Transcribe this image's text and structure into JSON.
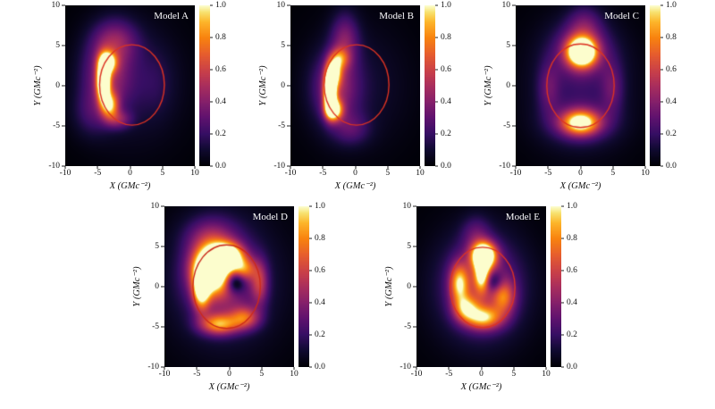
{
  "figure": {
    "background": "#ffffff",
    "label_color": "#ffffff",
    "tick_color": "#222222",
    "colormap_stops": [
      [
        0.0,
        [
          0,
          0,
          6
        ]
      ],
      [
        0.1,
        [
          16,
          10,
          48
        ]
      ],
      [
        0.2,
        [
          55,
          14,
          100
        ]
      ],
      [
        0.3,
        [
          95,
          18,
          110
        ]
      ],
      [
        0.4,
        [
          133,
          32,
          106
        ]
      ],
      [
        0.5,
        [
          170,
          46,
          93
        ]
      ],
      [
        0.6,
        [
          204,
          66,
          71
        ]
      ],
      [
        0.7,
        [
          231,
          94,
          45
        ]
      ],
      [
        0.8,
        [
          248,
          131,
          15
        ]
      ],
      [
        0.9,
        [
          253,
          182,
          43
        ]
      ],
      [
        0.96,
        [
          247,
          226,
          112
        ]
      ],
      [
        1.0,
        [
          252,
          253,
          205
        ]
      ]
    ]
  },
  "chart_data": [
    {
      "type": "heatmap",
      "title": "Model A",
      "xlabel": "X (GMc⁻²)",
      "ylabel": "Y (GMc⁻²)",
      "xlim": [
        -10,
        10
      ],
      "ylim": [
        -10,
        10
      ],
      "xticks": [
        -10,
        -5,
        0,
        5,
        10
      ],
      "yticks": [
        10,
        5,
        0,
        -5,
        -10
      ],
      "colorbar": {
        "min": 0,
        "max": 1,
        "ticks": [
          "1.0",
          "0.8",
          "0.6",
          "0.4",
          "0.2",
          "0.0"
        ]
      },
      "circle": {
        "cx": 0.3,
        "cy": 0.1,
        "r": 5.0,
        "color": "#dd3322"
      },
      "blobs": [
        {
          "x": -4.1,
          "y": 0.6,
          "sx": 0.65,
          "sy": 1.7,
          "a": 1.5
        },
        {
          "x": -3.4,
          "y": 2.9,
          "sx": 0.9,
          "sy": 0.9,
          "a": 0.85
        },
        {
          "x": -3.1,
          "y": -2.4,
          "sx": 0.9,
          "sy": 1.1,
          "a": 0.7
        },
        {
          "x": -1.8,
          "y": -4.2,
          "sx": 1.4,
          "sy": 0.8,
          "a": 0.3
        },
        {
          "x": -3.6,
          "y": 1.2,
          "sx": 2.6,
          "sy": 3.2,
          "a": 0.38
        },
        {
          "x": -2.2,
          "y": 5.6,
          "sx": 2.4,
          "sy": 1.9,
          "a": 0.3
        },
        {
          "x": -6.0,
          "y": -3.5,
          "sx": 2.0,
          "sy": 2.0,
          "a": 0.15
        },
        {
          "x": 0.5,
          "y": 0.3,
          "sx": 5.5,
          "sy": 5.5,
          "a": 0.12
        },
        {
          "x": 4.0,
          "y": 0.5,
          "sx": 2.0,
          "sy": 3.0,
          "a": 0.08
        }
      ]
    },
    {
      "type": "heatmap",
      "title": "Model B",
      "xlabel": "X (GMc⁻²)",
      "ylabel": "Y (GMc⁻²)",
      "xlim": [
        -10,
        10
      ],
      "ylim": [
        -10,
        10
      ],
      "xticks": [
        -10,
        -5,
        0,
        5,
        10
      ],
      "yticks": [
        10,
        5,
        0,
        -5,
        -10
      ],
      "colorbar": {
        "min": 0,
        "max": 1,
        "ticks": [
          "1.0",
          "0.8",
          "0.6",
          "0.4",
          "0.2",
          "0.0"
        ]
      },
      "circle": {
        "cx": 0.2,
        "cy": 0.1,
        "r": 5.0,
        "color": "#dd3322"
      },
      "blobs": [
        {
          "x": -3.9,
          "y": -0.8,
          "sx": 0.6,
          "sy": 1.6,
          "a": 1.5
        },
        {
          "x": -3.3,
          "y": -3.0,
          "sx": 0.9,
          "sy": 0.9,
          "a": 1.0
        },
        {
          "x": -3.3,
          "y": 1.6,
          "sx": 0.8,
          "sy": 1.2,
          "a": 0.8
        },
        {
          "x": -2.4,
          "y": 3.4,
          "sx": 1.0,
          "sy": 0.9,
          "a": 0.45
        },
        {
          "x": -3.1,
          "y": -0.3,
          "sx": 2.4,
          "sy": 3.0,
          "a": 0.38
        },
        {
          "x": -1.6,
          "y": 5.8,
          "sx": 1.5,
          "sy": 2.3,
          "a": 0.32
        },
        {
          "x": -0.6,
          "y": -5.4,
          "sx": 2.0,
          "sy": 1.4,
          "a": 0.2
        },
        {
          "x": 0.3,
          "y": 0.0,
          "sx": 5.5,
          "sy": 5.5,
          "a": 0.11
        }
      ]
    },
    {
      "type": "heatmap",
      "title": "Model C",
      "xlabel": "X (GMc⁻²)",
      "ylabel": "Y (GMc⁻²)",
      "xlim": [
        -10,
        10
      ],
      "ylim": [
        -10,
        10
      ],
      "xticks": [
        -10,
        -5,
        0,
        5,
        10
      ],
      "yticks": [
        10,
        5,
        0,
        -5,
        -10
      ],
      "colorbar": {
        "min": 0,
        "max": 1,
        "ticks": [
          "1.0",
          "0.8",
          "0.6",
          "0.4",
          "0.2",
          "0.0"
        ]
      },
      "circle": {
        "cx": 0.0,
        "cy": 0.0,
        "r": 5.2,
        "color": "#dd3322"
      },
      "blobs": [
        {
          "x": 0.2,
          "y": 4.2,
          "sx": 1.5,
          "sy": 1.2,
          "a": 1.35
        },
        {
          "x": 0.0,
          "y": -4.6,
          "sx": 1.9,
          "sy": 1.0,
          "a": 0.85
        },
        {
          "x": 0.2,
          "y": 4.4,
          "sx": 3.0,
          "sy": 2.3,
          "a": 0.35
        },
        {
          "x": 0.0,
          "y": -4.6,
          "sx": 3.4,
          "sy": 1.7,
          "a": 0.3
        },
        {
          "x": -4.9,
          "y": -0.3,
          "sx": 1.2,
          "sy": 2.2,
          "a": 0.22
        },
        {
          "x": 4.9,
          "y": -0.3,
          "sx": 1.2,
          "sy": 2.2,
          "a": 0.22
        },
        {
          "x": 0.0,
          "y": 0.0,
          "sx": 5.8,
          "sy": 5.5,
          "a": 0.16
        },
        {
          "x": 0.6,
          "y": 7.6,
          "sx": 1.8,
          "sy": 1.7,
          "a": 0.22
        }
      ]
    },
    {
      "type": "heatmap",
      "title": "Model D",
      "xlabel": "X (GMc⁻²)",
      "ylabel": "Y (GMc⁻²)",
      "xlim": [
        -10,
        10
      ],
      "ylim": [
        -10,
        10
      ],
      "xticks": [
        -10,
        -5,
        0,
        5,
        10
      ],
      "yticks": [
        10,
        5,
        0,
        -5,
        -10
      ],
      "colorbar": {
        "min": 0,
        "max": 1,
        "ticks": [
          "1.0",
          "0.8",
          "0.6",
          "0.4",
          "0.2",
          "0.0"
        ]
      },
      "circle": {
        "cx": -0.4,
        "cy": 0.0,
        "r": 5.2,
        "color": "#cc2a1a"
      },
      "blobs": [
        {
          "x": -2.7,
          "y": 2.3,
          "sx": 1.9,
          "sy": 1.8,
          "a": 1.3
        },
        {
          "x": -0.3,
          "y": 3.9,
          "sx": 1.6,
          "sy": 1.0,
          "a": 1.0
        },
        {
          "x": -4.3,
          "y": -0.3,
          "sx": 0.9,
          "sy": 1.8,
          "a": 0.85
        },
        {
          "x": -1.6,
          "y": -4.7,
          "sx": 2.0,
          "sy": 0.9,
          "a": 0.7
        },
        {
          "x": 2.4,
          "y": -3.9,
          "sx": 1.6,
          "sy": 1.0,
          "a": 0.55
        },
        {
          "x": 4.7,
          "y": 0.4,
          "sx": 0.9,
          "sy": 1.9,
          "a": 0.4
        },
        {
          "x": -1.6,
          "y": 1.4,
          "sx": 3.4,
          "sy": 3.4,
          "a": 0.42
        },
        {
          "x": -0.5,
          "y": 0.5,
          "sx": 6.3,
          "sy": 6.0,
          "a": 0.18
        },
        {
          "x": -3.0,
          "y": 6.2,
          "sx": 2.6,
          "sy": 1.7,
          "a": 0.25
        },
        {
          "x": 0.9,
          "y": 0.7,
          "sx": 1.1,
          "sy": 1.0,
          "a": -0.6
        },
        {
          "x": 2.2,
          "y": 2.2,
          "sx": 1.3,
          "sy": 1.0,
          "a": 0.5
        }
      ]
    },
    {
      "type": "heatmap",
      "title": "Model E",
      "xlabel": "X (GMc⁻²)",
      "ylabel": "Y (GMc⁻²)",
      "xlim": [
        -10,
        10
      ],
      "ylim": [
        -10,
        10
      ],
      "xticks": [
        -10,
        -5,
        0,
        5,
        10
      ],
      "yticks": [
        10,
        5,
        0,
        -5,
        -10
      ],
      "colorbar": {
        "min": 0,
        "max": 1,
        "ticks": [
          "1.0",
          "0.8",
          "0.6",
          "0.4",
          "0.2",
          "0.0"
        ]
      },
      "circle": {
        "cx": 0.2,
        "cy": -0.1,
        "r": 5.0,
        "color": "#dd3322"
      },
      "blobs": [
        {
          "x": 0.4,
          "y": 3.9,
          "sx": 1.3,
          "sy": 1.1,
          "a": 1.35
        },
        {
          "x": 0.1,
          "y": 1.6,
          "sx": 0.8,
          "sy": 1.5,
          "a": 0.8
        },
        {
          "x": -3.4,
          "y": 0.4,
          "sx": 1.0,
          "sy": 1.7,
          "a": 0.7
        },
        {
          "x": -2.3,
          "y": -2.7,
          "sx": 1.3,
          "sy": 1.1,
          "a": 0.6
        },
        {
          "x": 0.4,
          "y": -3.9,
          "sx": 1.9,
          "sy": 1.0,
          "a": 0.7
        },
        {
          "x": 3.5,
          "y": -1.3,
          "sx": 1.2,
          "sy": 1.5,
          "a": 0.5
        },
        {
          "x": 0.0,
          "y": 0.0,
          "sx": 3.9,
          "sy": 3.9,
          "a": 0.35
        },
        {
          "x": 0.0,
          "y": 0.0,
          "sx": 6.0,
          "sy": 5.6,
          "a": 0.12
        },
        {
          "x": 1.9,
          "y": 0.6,
          "sx": 1.0,
          "sy": 0.9,
          "a": -0.35
        },
        {
          "x": -0.8,
          "y": 6.6,
          "sx": 1.5,
          "sy": 1.5,
          "a": 0.2
        }
      ]
    }
  ]
}
